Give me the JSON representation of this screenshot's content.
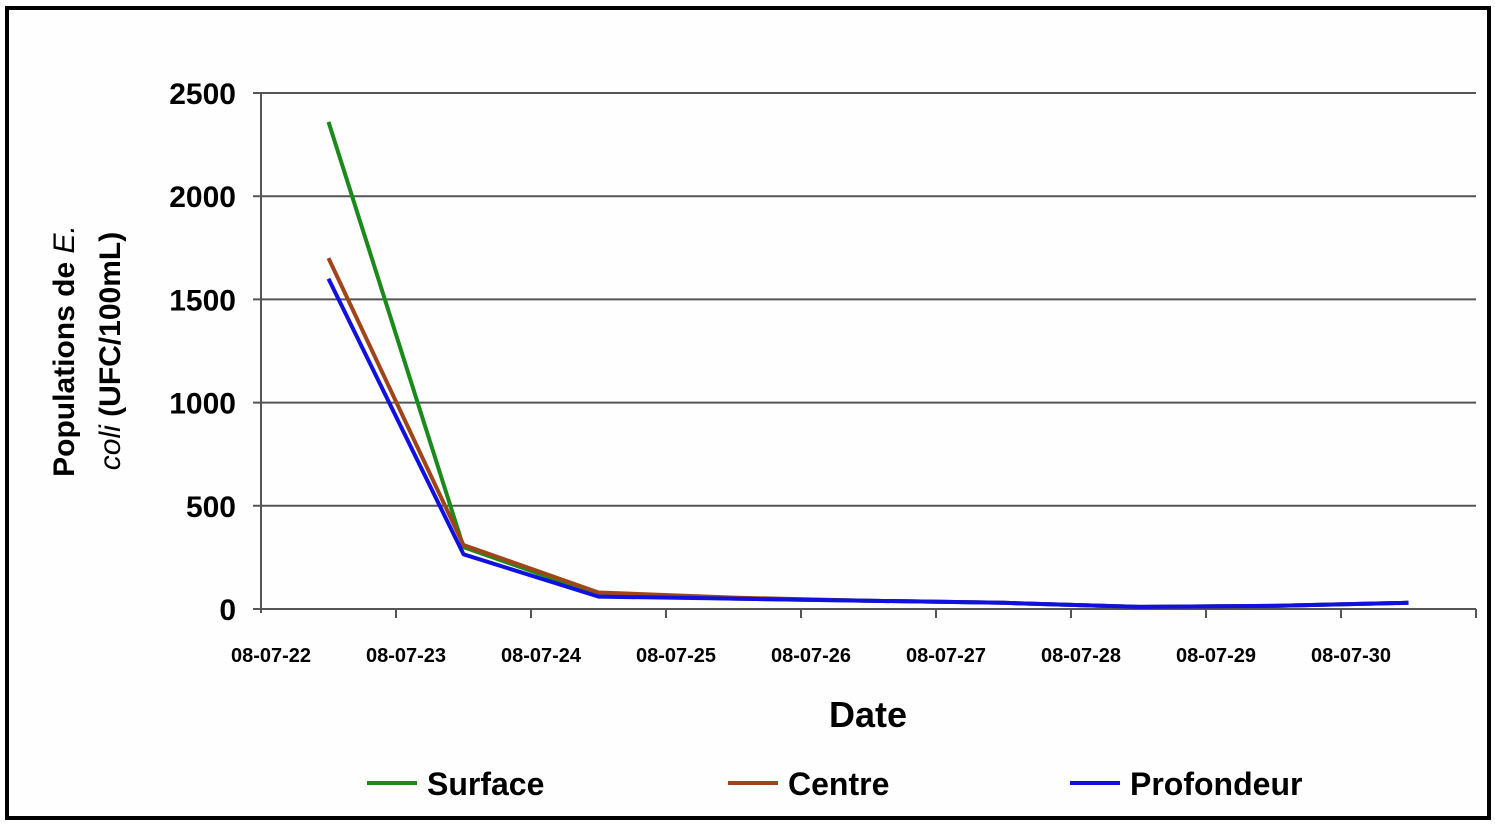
{
  "chart_data": {
    "type": "line",
    "title": "",
    "xlabel": "Date",
    "ylabel": "Populations de E. coli (UFC/100mL)",
    "ylabel_parts": {
      "line1_prefix": "Populations de ",
      "line1_italic": "E.",
      "line2_italic": "coli",
      "line2_suffix": " (UFC/100mL)"
    },
    "ylim": [
      0,
      2500
    ],
    "yticks": [
      0,
      500,
      1000,
      1500,
      2000,
      2500
    ],
    "grid": true,
    "legend_position": "bottom",
    "categories": [
      "08-07-22",
      "08-07-23",
      "08-07-24",
      "08-07-25",
      "08-07-26",
      "08-07-27",
      "08-07-28",
      "08-07-29",
      "08-07-30"
    ],
    "series": [
      {
        "name": "Surface",
        "color": "#1a8a1a",
        "values": [
          2360,
          300,
          70,
          50,
          40,
          30,
          10,
          15,
          30
        ]
      },
      {
        "name": "Centre",
        "color": "#a0451a",
        "values": [
          1700,
          310,
          80,
          55,
          40,
          30,
          10,
          15,
          30
        ]
      },
      {
        "name": "Profondeur",
        "color": "#1010e0",
        "values": [
          1600,
          265,
          60,
          50,
          40,
          30,
          10,
          15,
          30
        ]
      }
    ]
  }
}
